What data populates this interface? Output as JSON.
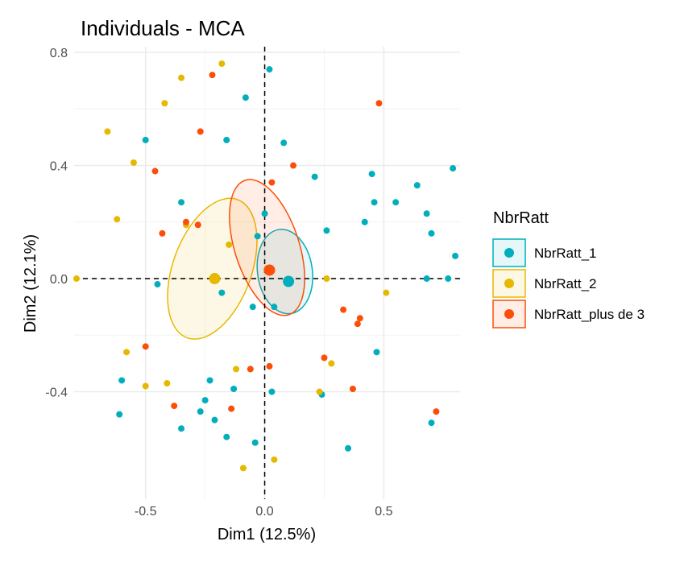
{
  "chart_data": {
    "type": "scatter",
    "title": "Individuals - MCA",
    "xlabel": "Dim1 (12.5%)",
    "ylabel": "Dim2 (12.1%)",
    "xlim": [
      -0.8,
      0.82
    ],
    "ylim": [
      -0.78,
      0.82
    ],
    "x_ticks": [
      -0.5,
      0.0,
      0.5
    ],
    "x_tick_labels": [
      "-0.5",
      "0.0",
      "0.5"
    ],
    "y_ticks": [
      -0.4,
      0.0,
      0.4,
      0.8
    ],
    "y_tick_labels": [
      "-0.4",
      "0.0",
      "0.4",
      "0.8"
    ],
    "grid": true,
    "legend": {
      "title": "NbrRatt",
      "position": "right"
    },
    "reference_lines": {
      "x": 0,
      "y": 0,
      "style": "dashed"
    },
    "series": [
      {
        "name": "NbrRatt_1",
        "color": "#00AFBB",
        "centroid": [
          0.1,
          -0.01
        ],
        "ellipse": {
          "cx": 0.085,
          "cy": 0.025,
          "rx": 0.115,
          "ry": 0.15,
          "angle": -8
        },
        "points": [
          [
            0.02,
            0.74
          ],
          [
            -0.08,
            0.64
          ],
          [
            -0.5,
            0.49
          ],
          [
            -0.16,
            0.49
          ],
          [
            0.08,
            0.48
          ],
          [
            0.21,
            0.36
          ],
          [
            0.45,
            0.37
          ],
          [
            0.79,
            0.39
          ],
          [
            -0.35,
            0.27
          ],
          [
            0.46,
            0.27
          ],
          [
            0.55,
            0.27
          ],
          [
            0.64,
            0.33
          ],
          [
            0.68,
            0.23
          ],
          [
            0.0,
            0.23
          ],
          [
            0.42,
            0.2
          ],
          [
            0.26,
            0.17
          ],
          [
            0.7,
            0.16
          ],
          [
            -0.03,
            0.15
          ],
          [
            0.8,
            0.08
          ],
          [
            -0.45,
            -0.02
          ],
          [
            0.68,
            0.0
          ],
          [
            0.77,
            0.0
          ],
          [
            -0.18,
            -0.05
          ],
          [
            -0.05,
            -0.1
          ],
          [
            0.04,
            -0.1
          ],
          [
            0.47,
            -0.26
          ],
          [
            -0.6,
            -0.36
          ],
          [
            -0.23,
            -0.36
          ],
          [
            -0.13,
            -0.39
          ],
          [
            0.03,
            -0.4
          ],
          [
            0.24,
            -0.41
          ],
          [
            -0.25,
            -0.43
          ],
          [
            -0.61,
            -0.48
          ],
          [
            -0.27,
            -0.47
          ],
          [
            -0.21,
            -0.5
          ],
          [
            -0.35,
            -0.53
          ],
          [
            -0.16,
            -0.56
          ],
          [
            -0.04,
            -0.58
          ],
          [
            0.35,
            -0.6
          ],
          [
            0.7,
            -0.51
          ]
        ]
      },
      {
        "name": "NbrRatt_2",
        "color": "#E7B800",
        "centroid": [
          -0.21,
          0.0
        ],
        "ellipse": {
          "cx": -0.22,
          "cy": 0.035,
          "rx": 0.165,
          "ry": 0.26,
          "angle": 20
        },
        "points": [
          [
            -0.18,
            0.76
          ],
          [
            -0.35,
            0.71
          ],
          [
            -0.42,
            0.62
          ],
          [
            -0.66,
            0.52
          ],
          [
            -0.55,
            0.41
          ],
          [
            -0.62,
            0.21
          ],
          [
            -0.33,
            0.19
          ],
          [
            -0.79,
            0.0
          ],
          [
            -0.15,
            0.12
          ],
          [
            0.26,
            0.0
          ],
          [
            0.51,
            -0.05
          ],
          [
            -0.58,
            -0.26
          ],
          [
            0.28,
            -0.3
          ],
          [
            -0.12,
            -0.32
          ],
          [
            -0.5,
            -0.38
          ],
          [
            -0.41,
            -0.37
          ],
          [
            0.23,
            -0.4
          ],
          [
            -0.09,
            -0.67
          ],
          [
            0.04,
            -0.64
          ]
        ]
      },
      {
        "name": "NbrRatt_plus de 3",
        "color": "#FC4E07",
        "centroid": [
          0.02,
          0.03
        ],
        "ellipse": {
          "cx": 0.01,
          "cy": 0.11,
          "rx": 0.135,
          "ry": 0.25,
          "angle": -18
        },
        "points": [
          [
            -0.22,
            0.72
          ],
          [
            0.48,
            0.62
          ],
          [
            -0.27,
            0.52
          ],
          [
            0.12,
            0.4
          ],
          [
            -0.46,
            0.38
          ],
          [
            0.03,
            0.34
          ],
          [
            -0.33,
            0.2
          ],
          [
            -0.28,
            0.19
          ],
          [
            -0.43,
            0.16
          ],
          [
            0.33,
            -0.11
          ],
          [
            0.4,
            -0.14
          ],
          [
            0.39,
            -0.16
          ],
          [
            -0.5,
            -0.24
          ],
          [
            0.25,
            -0.28
          ],
          [
            0.02,
            -0.31
          ],
          [
            -0.06,
            -0.32
          ],
          [
            0.37,
            -0.39
          ],
          [
            -0.38,
            -0.45
          ],
          [
            -0.14,
            -0.46
          ],
          [
            0.72,
            -0.47
          ]
        ]
      }
    ]
  }
}
